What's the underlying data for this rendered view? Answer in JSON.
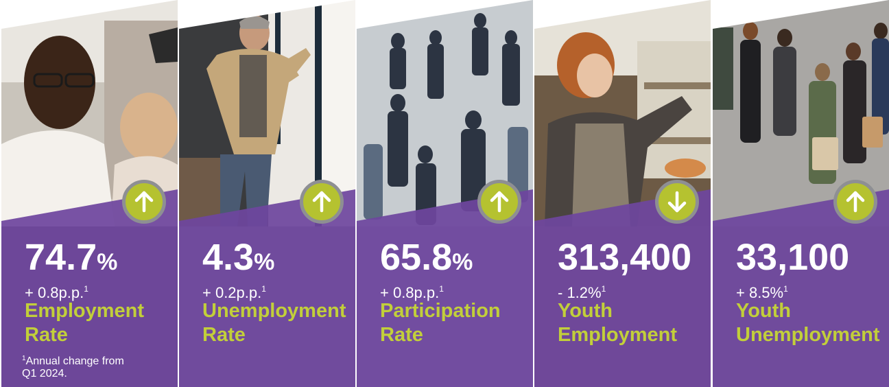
{
  "colors": {
    "purple": "#6e469e",
    "accent_green": "#c2cf3a",
    "badge_green": "#b5c230",
    "badge_ring": "#8e8f93",
    "text_white": "#ffffff"
  },
  "panels": [
    {
      "value": "74.7",
      "unit": "%",
      "change": "+ 0.8p.p.",
      "footnote_marker": "1",
      "label_line1": "Employment",
      "label_line2": "Rate",
      "arrow": "up-arrow-icon",
      "photo": "man-with-glasses-at-computer"
    },
    {
      "value": "4.3",
      "unit": "%",
      "change": "+ 0.2p.p.",
      "footnote_marker": "1",
      "label_line1": "Unemployment",
      "label_line2": "Rate",
      "arrow": "up-arrow-icon",
      "photo": "man-in-trench-coat-leaning-on-wall"
    },
    {
      "value": "65.8",
      "unit": "%",
      "change": "+ 0.8p.p.",
      "footnote_marker": "1",
      "label_line1": "Participation",
      "label_line2": "Rate",
      "arrow": "up-arrow-icon",
      "photo": "crowd-of-commuters-walking"
    },
    {
      "value": "313,400",
      "unit": "",
      "change": "- 1.2%",
      "footnote_marker": "1",
      "label_line1": "Youth",
      "label_line2": "Employment",
      "arrow": "down-arrow-icon",
      "photo": "young-woman-in-apron-at-shop-shelf"
    },
    {
      "value": "33,100",
      "unit": "",
      "change": "+ 8.5%",
      "footnote_marker": "1",
      "label_line1": "Youth",
      "label_line2": "Unemployment",
      "arrow": "up-arrow-icon",
      "photo": "young-people-walking-with-shopping-bags"
    }
  ],
  "footnote": {
    "marker": "1",
    "text_line1": "Annual change from",
    "text_line2": "Q1 2024."
  }
}
